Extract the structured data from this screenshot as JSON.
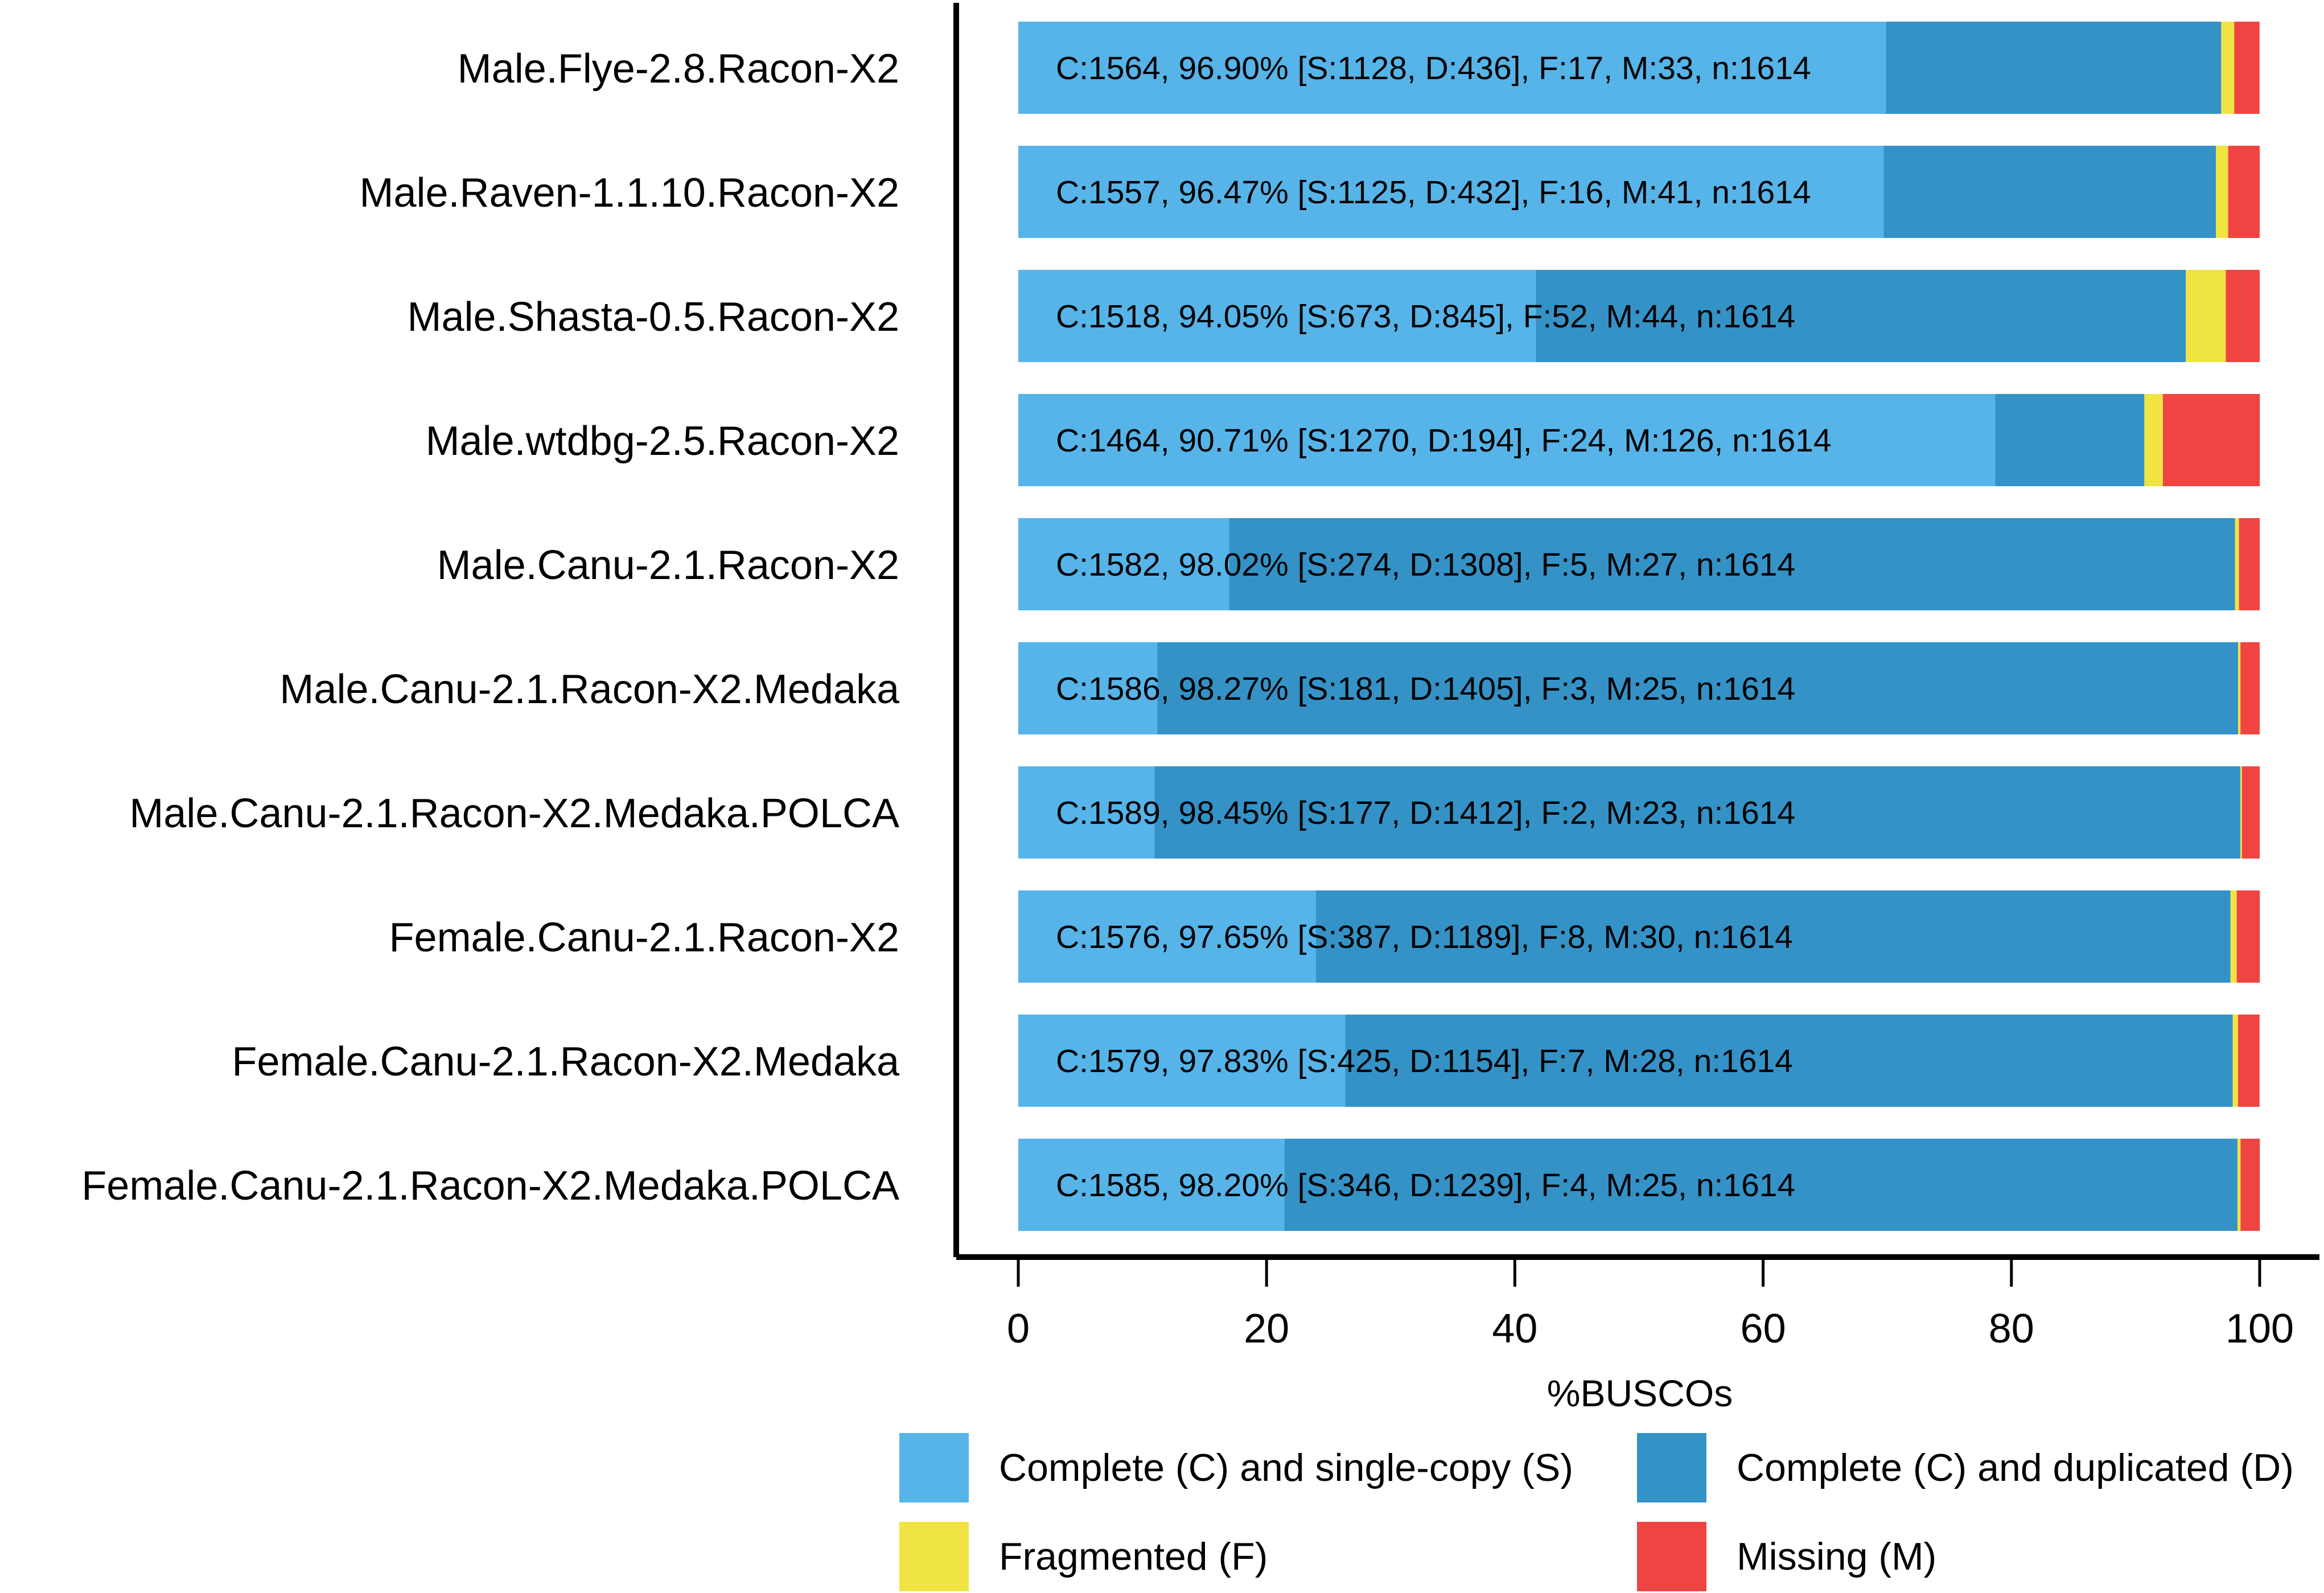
{
  "chart_data": {
    "type": "bar",
    "orientation": "horizontal",
    "stacked": true,
    "title": "",
    "xlabel": "%BUSCOs",
    "ylabel": "",
    "xlim": [
      0,
      100
    ],
    "xticks": [
      "0",
      "20",
      "40",
      "60",
      "80",
      "100"
    ],
    "categories": [
      "Male.Flye-2.8.Racon-X2",
      "Male.Raven-1.1.10.Racon-X2",
      "Male.Shasta-0.5.Racon-X2",
      "Male.wtdbg-2.5.Racon-X2",
      "Male.Canu-2.1.Racon-X2",
      "Male.Canu-2.1.Racon-X2.Medaka",
      "Male.Canu-2.1.Racon-X2.Medaka.POLCA",
      "Female.Canu-2.1.Racon-X2",
      "Female.Canu-2.1.Racon-X2.Medaka",
      "Female.Canu-2.1.Racon-X2.Medaka.POLCA"
    ],
    "bar_labels": [
      "C:1564, 96.90% [S:1128, D:436], F:17, M:33, n:1614",
      "C:1557, 96.47% [S:1125, D:432], F:16, M:41, n:1614",
      "C:1518, 94.05% [S:673, D:845], F:52, M:44, n:1614",
      "C:1464, 90.71% [S:1270, D:194], F:24, M:126, n:1614",
      "C:1582, 98.02% [S:274, D:1308], F:5, M:27, n:1614",
      "C:1586, 98.27% [S:181, D:1405], F:3, M:25, n:1614",
      "C:1589, 98.45% [S:177, D:1412], F:2, M:23, n:1614",
      "C:1576, 97.65% [S:387, D:1189], F:8, M:30, n:1614",
      "C:1579, 97.83% [S:425, D:1154], F:7, M:28, n:1614",
      "C:1585, 98.20% [S:346, D:1239], F:4, M:25, n:1614"
    ],
    "series": [
      {
        "name": "Complete (C) and single-copy (S)",
        "color": "#56b4e9",
        "values": [
          69.89,
          69.7,
          41.7,
          78.69,
          16.98,
          11.21,
          10.97,
          23.98,
          26.33,
          21.44
        ]
      },
      {
        "name": "Complete (C) and duplicated (D)",
        "color": "#3492c7",
        "values": [
          27.01,
          26.77,
          52.35,
          12.02,
          81.04,
          87.05,
          87.48,
          73.67,
          71.5,
          76.77
        ]
      },
      {
        "name": "Fragmented (F)",
        "color": "#f0e442",
        "values": [
          1.05,
          0.99,
          3.22,
          1.49,
          0.31,
          0.19,
          0.12,
          0.5,
          0.43,
          0.25
        ]
      },
      {
        "name": "Missing (M)",
        "color": "#f04442",
        "values": [
          2.04,
          2.54,
          2.73,
          7.81,
          1.67,
          1.55,
          1.43,
          1.86,
          1.73,
          1.55
        ]
      }
    ],
    "legend": {
      "position": "bottom",
      "items": [
        {
          "label": "Complete (C) and single-copy (S)",
          "color": "#56b4e9"
        },
        {
          "label": "Complete (C) and duplicated (D)",
          "color": "#3492c7"
        },
        {
          "label": "Fragmented (F)",
          "color": "#f0e442"
        },
        {
          "label": "Missing (M)",
          "color": "#f04442"
        }
      ]
    }
  }
}
